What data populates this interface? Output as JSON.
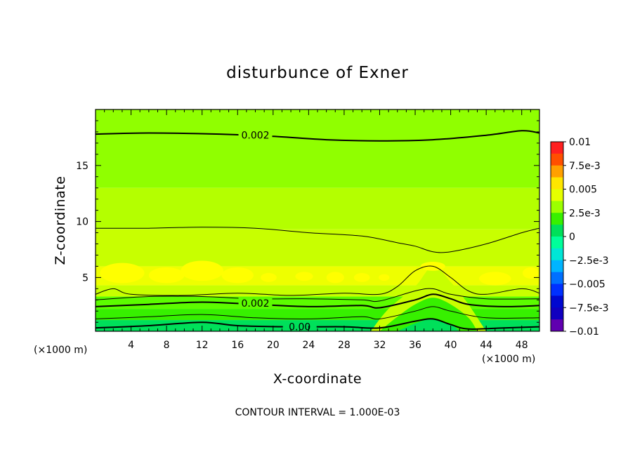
{
  "chart_data": {
    "type": "heatmap",
    "title": "disturbunce of Exner",
    "xlabel": "X-coordinate",
    "ylabel": "Z-coordinate",
    "x_unit": "(×1000 m)",
    "y_unit": "(×1000 m)",
    "xlim": [
      0,
      50
    ],
    "ylim": [
      0.2,
      20
    ],
    "x_ticks": [
      "4",
      "8",
      "12",
      "16",
      "20",
      "24",
      "28",
      "32",
      "36",
      "40",
      "44",
      "48"
    ],
    "y_ticks": [
      "5",
      "10",
      "15"
    ],
    "contour_interval_text": "CONTOUR INTERVAL = 1.000E-03",
    "contour_labels": [
      "0.002",
      "0.002",
      "0.00"
    ],
    "colorbar": {
      "labels": [
        "0.01",
        "7.5e-3",
        "0.005",
        "2.5e-3",
        "0",
        "−2.5e-3",
        "−0.005",
        "−7.5e-3",
        "−0.01"
      ],
      "colors": [
        "#ff2020",
        "#ff4f00",
        "#ffa000",
        "#ffe600",
        "#e6ff00",
        "#9cff00",
        "#37f000",
        "#00e05a",
        "#00ff9a",
        "#00e6d6",
        "#00b4ff",
        "#0070ff",
        "#0030ff",
        "#0008d0",
        "#1000c0",
        "#6000b0"
      ]
    },
    "levels_by_height": [
      {
        "z_range": [
          0.2,
          1.2
        ],
        "value": 0.0,
        "color": "#00e05a"
      },
      {
        "z_range": [
          1.2,
          2.2
        ],
        "value": 0.001,
        "color": "#37f000"
      },
      {
        "z_range": [
          2.2,
          3.3
        ],
        "value": 0.0015,
        "color": "#5cfc00"
      },
      {
        "z_range": [
          3.3,
          4.3
        ],
        "value": 0.0025,
        "color": "#c8ff00"
      },
      {
        "z_range": [
          4.3,
          6.0
        ],
        "value": 0.0028,
        "color": "#eeff00"
      },
      {
        "z_range": [
          6.0,
          9.3
        ],
        "value": 0.0025,
        "color": "#c8ff00"
      },
      {
        "z_range": [
          9.3,
          13.0
        ],
        "value": 0.0022,
        "color": "#b4ff00"
      },
      {
        "z_range": [
          13.0,
          20.0
        ],
        "value": 0.0018,
        "color": "#90ff00"
      }
    ],
    "contours": [
      {
        "value": 0.002,
        "points": [
          [
            0,
            17.8
          ],
          [
            6,
            17.9
          ],
          [
            14,
            17.8
          ],
          [
            20,
            17.6
          ],
          [
            26,
            17.3
          ],
          [
            32,
            17.2
          ],
          [
            38,
            17.3
          ],
          [
            44,
            17.7
          ],
          [
            48,
            18.1
          ],
          [
            50,
            17.9
          ]
        ]
      },
      {
        "value": 0.002,
        "points": [
          [
            0,
            2.4
          ],
          [
            6,
            2.6
          ],
          [
            12,
            2.8
          ],
          [
            18,
            2.6
          ],
          [
            24,
            2.4
          ],
          [
            30,
            2.5
          ],
          [
            32,
            2.3
          ],
          [
            36,
            3.0
          ],
          [
            38,
            3.5
          ],
          [
            40,
            3.1
          ],
          [
            42,
            2.6
          ],
          [
            46,
            2.4
          ],
          [
            50,
            2.5
          ]
        ]
      },
      {
        "value": 0.0,
        "points": [
          [
            0,
            0.5
          ],
          [
            6,
            0.7
          ],
          [
            12,
            1.0
          ],
          [
            16,
            0.7
          ],
          [
            22,
            0.6
          ],
          [
            28,
            0.6
          ],
          [
            32,
            0.5
          ],
          [
            36,
            1.1
          ],
          [
            38,
            1.3
          ],
          [
            40,
            0.8
          ],
          [
            42,
            0.4
          ],
          [
            46,
            0.5
          ],
          [
            50,
            0.6
          ]
        ]
      }
    ],
    "thin_contours": [
      {
        "points": [
          [
            0,
            9.4
          ],
          [
            6,
            9.4
          ],
          [
            12,
            9.5
          ],
          [
            18,
            9.4
          ],
          [
            24,
            9.0
          ],
          [
            30,
            8.7
          ],
          [
            34,
            8.1
          ],
          [
            36,
            7.8
          ],
          [
            38,
            7.3
          ],
          [
            40,
            7.3
          ],
          [
            44,
            8.0
          ],
          [
            48,
            9.0
          ],
          [
            50,
            9.4
          ]
        ]
      },
      {
        "points": [
          [
            0,
            3.5
          ],
          [
            2,
            4.0
          ],
          [
            4,
            3.5
          ],
          [
            10,
            3.4
          ],
          [
            16,
            3.6
          ],
          [
            22,
            3.4
          ],
          [
            28,
            3.6
          ],
          [
            32,
            3.5
          ],
          [
            34,
            4.2
          ],
          [
            36,
            5.6
          ],
          [
            38,
            6.0
          ],
          [
            40,
            5.0
          ],
          [
            42,
            3.8
          ],
          [
            44,
            3.5
          ],
          [
            48,
            4.0
          ],
          [
            50,
            3.6
          ]
        ]
      },
      {
        "points": [
          [
            0,
            3.0
          ],
          [
            6,
            3.3
          ],
          [
            12,
            3.3
          ],
          [
            18,
            3.1
          ],
          [
            24,
            3.1
          ],
          [
            30,
            3.0
          ],
          [
            32,
            2.9
          ],
          [
            36,
            3.8
          ],
          [
            38,
            4.0
          ],
          [
            40,
            3.5
          ],
          [
            44,
            3.1
          ],
          [
            50,
            3.1
          ]
        ]
      },
      {
        "points": [
          [
            0,
            1.3
          ],
          [
            6,
            1.5
          ],
          [
            12,
            1.7
          ],
          [
            18,
            1.4
          ],
          [
            24,
            1.3
          ],
          [
            30,
            1.5
          ],
          [
            32,
            1.3
          ],
          [
            36,
            2.0
          ],
          [
            38,
            2.4
          ],
          [
            40,
            2.0
          ],
          [
            44,
            1.4
          ],
          [
            50,
            1.4
          ]
        ]
      }
    ]
  }
}
